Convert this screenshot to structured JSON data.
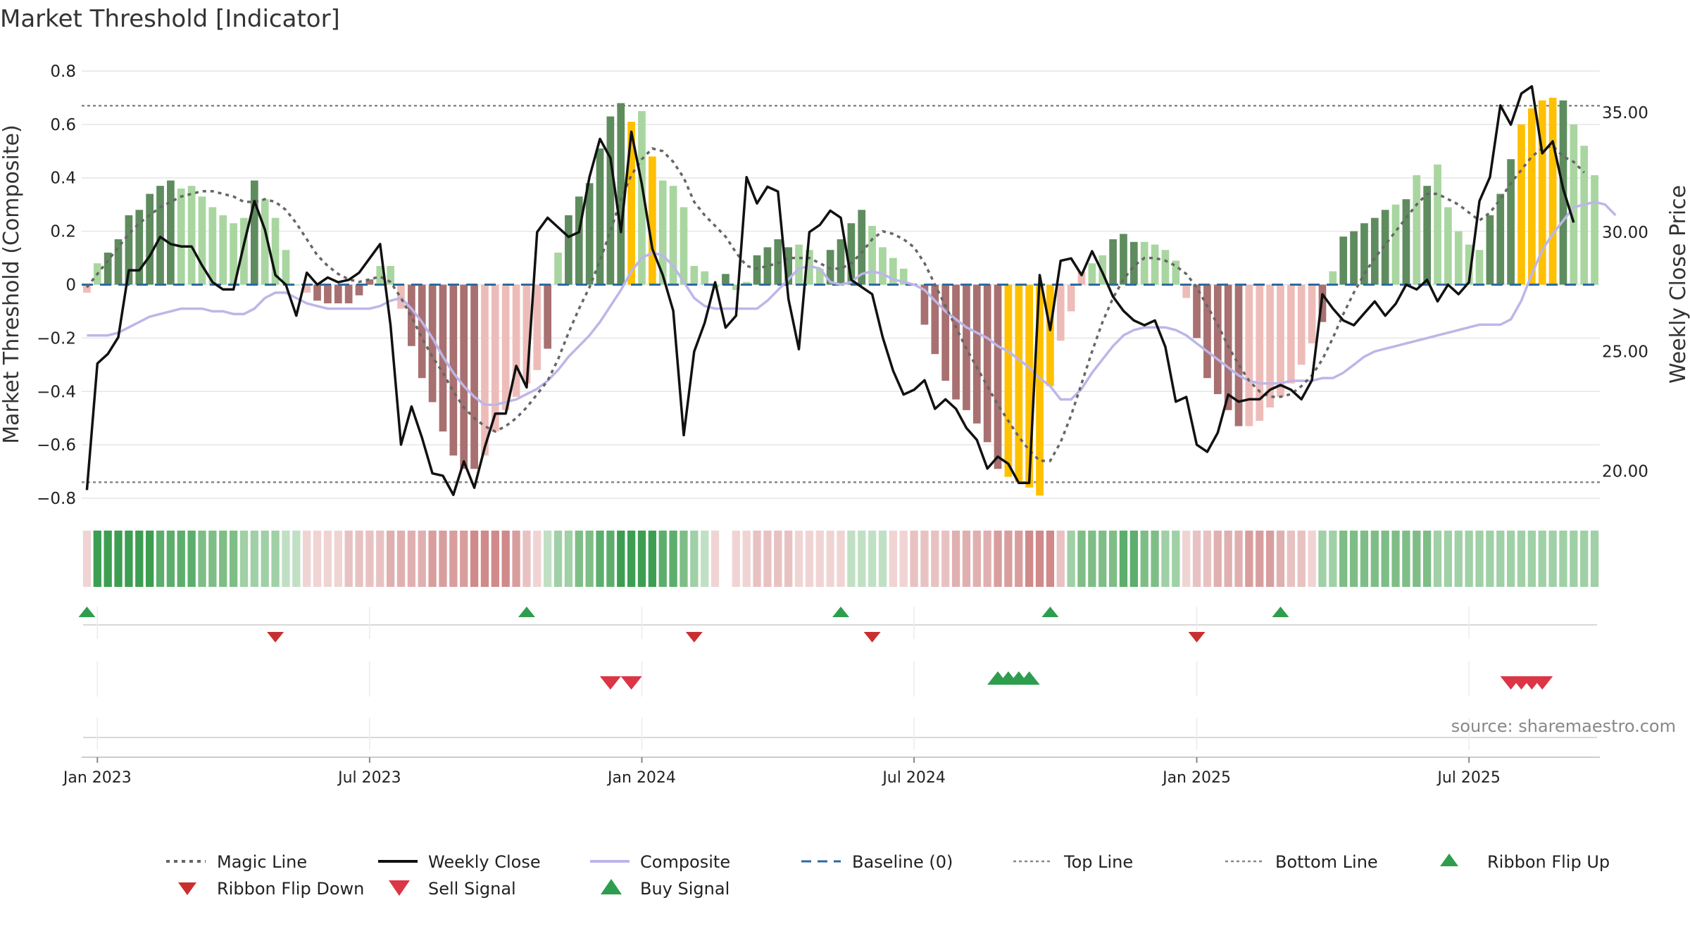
{
  "colors": {
    "pos_strong": "#5e8c5e",
    "pos_light": "#a9d6a0",
    "neg_strong": "#a87070",
    "neg_light": "#eebcb8",
    "extreme": "#ffc000",
    "magic": "#666666",
    "close": "#111111",
    "composite": "#bdb6e8",
    "baseline": "#2e6a9e",
    "threshold": "#888888",
    "buy": "#2e9e4e",
    "sell": "#dc3545",
    "ribbon_up": "#2e9e4e",
    "ribbon_down": "#c8302f",
    "grid": "#e6e6e6"
  },
  "chart_data": {
    "type": "bar",
    "title": "Market Threshold [Indicator]",
    "ylabel": "Market Threshold (Composite)",
    "y2label": "Weekly Close Price",
    "ylim": [
      -0.85,
      0.85
    ],
    "y2lim": [
      18.3,
      37.3
    ],
    "yticks": [
      "0.8",
      "0.6",
      "0.4",
      "0.2",
      "0",
      "−0.2",
      "−0.4",
      "−0.6",
      "−0.8"
    ],
    "yticks_values": [
      0.8,
      0.6,
      0.4,
      0.2,
      0,
      -0.2,
      -0.4,
      -0.6,
      -0.8
    ],
    "y2ticks": [
      "35.00",
      "30.00",
      "25.00",
      "20.00"
    ],
    "y2ticks_values": [
      35,
      30,
      25,
      20
    ],
    "top_line": 0.67,
    "bottom_line": -0.74,
    "x_start_week": -1,
    "x_ticks": [
      {
        "label": "Jan 2023",
        "week": 0
      },
      {
        "label": "Jul 2023",
        "week": 26
      },
      {
        "label": "Jan 2024",
        "week": 52
      },
      {
        "label": "Jul 2024",
        "week": 78
      },
      {
        "label": "Jan 2025",
        "week": 105
      },
      {
        "label": "Jul 2025",
        "week": 131
      }
    ],
    "composite_bars": [
      -0.03,
      0.08,
      0.12,
      0.17,
      0.26,
      0.28,
      0.34,
      0.37,
      0.39,
      0.36,
      0.37,
      0.33,
      0.29,
      0.26,
      0.23,
      0.25,
      0.39,
      0.32,
      0.25,
      0.13,
      0.0,
      -0.03,
      -0.06,
      -0.07,
      -0.07,
      -0.07,
      -0.04,
      0.02,
      0.07,
      0.07,
      -0.09,
      -0.23,
      -0.35,
      -0.44,
      -0.55,
      -0.64,
      -0.69,
      -0.69,
      -0.64,
      -0.55,
      -0.47,
      -0.42,
      -0.37,
      -0.32,
      -0.24,
      0.12,
      0.26,
      0.33,
      0.38,
      0.51,
      0.63,
      0.68,
      0.61,
      0.65,
      0.48,
      0.39,
      0.37,
      0.29,
      0.07,
      0.05,
      -0.01,
      0.04,
      -0.02,
      0.01,
      0.11,
      0.14,
      0.17,
      0.14,
      0.15,
      0.13,
      0.06,
      0.13,
      0.17,
      0.23,
      0.28,
      0.22,
      0.14,
      0.1,
      0.06,
      0.0,
      -0.15,
      -0.26,
      -0.36,
      -0.43,
      -0.47,
      -0.52,
      -0.59,
      -0.69,
      -0.72,
      -0.74,
      -0.76,
      -0.79,
      -0.38,
      -0.21,
      -0.1,
      0.05,
      0.08,
      0.11,
      0.17,
      0.19,
      0.16,
      0.16,
      0.15,
      0.13,
      0.09,
      -0.05,
      -0.2,
      -0.35,
      -0.41,
      -0.47,
      -0.53,
      -0.53,
      -0.51,
      -0.46,
      -0.42,
      -0.37,
      -0.3,
      -0.22,
      -0.14,
      0.05,
      0.18,
      0.2,
      0.23,
      0.25,
      0.28,
      0.3,
      0.32,
      0.41,
      0.37,
      0.45,
      0.29,
      0.2,
      0.15,
      0.13,
      0.26,
      0.34,
      0.47,
      0.6,
      0.66,
      0.69,
      0.7,
      0.69,
      0.6,
      0.52,
      0.41
    ],
    "composite_bar_styles": [
      "nl",
      "pl",
      "ps",
      "ps",
      "ps",
      "ps",
      "ps",
      "ps",
      "ps",
      "pl",
      "pl",
      "pl",
      "pl",
      "pl",
      "pl",
      "pl",
      "ps",
      "pl",
      "pl",
      "pl",
      "pl",
      "nl",
      "ns",
      "ns",
      "ns",
      "ns",
      "ns",
      "ns",
      "pl",
      "pl",
      "nl",
      "ns",
      "ns",
      "ns",
      "ns",
      "ns",
      "ns",
      "ns",
      "nl",
      "nl",
      "nl",
      "nl",
      "nl",
      "nl",
      "ns",
      "pl",
      "ps",
      "ps",
      "ps",
      "ps",
      "ps",
      "ps",
      "ex",
      "pl",
      "ex",
      "pl",
      "pl",
      "pl",
      "pl",
      "pl",
      "pl",
      "ps",
      "pl",
      "pl",
      "ps",
      "ps",
      "ps",
      "ps",
      "pl",
      "pl",
      "pl",
      "ps",
      "ps",
      "ps",
      "ps",
      "pl",
      "pl",
      "pl",
      "pl",
      "pl",
      "ns",
      "ns",
      "ns",
      "ns",
      "ns",
      "ns",
      "ns",
      "ns",
      "ex",
      "ex",
      "ex",
      "ex",
      "ex",
      "nl",
      "nl",
      "nl",
      "pl",
      "pl",
      "ps",
      "ps",
      "ps",
      "pl",
      "pl",
      "pl",
      "pl",
      "nl",
      "ns",
      "ns",
      "ns",
      "ns",
      "ns",
      "nl",
      "nl",
      "nl",
      "nl",
      "nl",
      "nl",
      "nl",
      "ns",
      "pl",
      "ps",
      "ps",
      "ps",
      "ps",
      "ps",
      "pl",
      "ps",
      "pl",
      "ps",
      "pl",
      "pl",
      "pl",
      "pl",
      "pl",
      "ps",
      "ps",
      "ps",
      "ex",
      "ex",
      "ex",
      "ex",
      "ps",
      "pl",
      "pl"
    ],
    "magic_line": [
      -0.01,
      0.04,
      0.09,
      0.14,
      0.19,
      0.23,
      0.26,
      0.29,
      0.31,
      0.33,
      0.34,
      0.35,
      0.35,
      0.34,
      0.33,
      0.31,
      0.31,
      0.32,
      0.31,
      0.28,
      0.23,
      0.17,
      0.11,
      0.07,
      0.04,
      0.02,
      0.01,
      0.02,
      0.03,
      0.01,
      -0.05,
      -0.12,
      -0.2,
      -0.27,
      -0.33,
      -0.4,
      -0.46,
      -0.5,
      -0.53,
      -0.55,
      -0.53,
      -0.5,
      -0.46,
      -0.41,
      -0.36,
      -0.28,
      -0.18,
      -0.09,
      -0.01,
      0.09,
      0.2,
      0.32,
      0.41,
      0.47,
      0.51,
      0.5,
      0.46,
      0.4,
      0.31,
      0.26,
      0.22,
      0.18,
      0.12,
      0.07,
      0.06,
      0.07,
      0.08,
      0.1,
      0.1,
      0.1,
      0.08,
      0.06,
      0.06,
      0.08,
      0.12,
      0.17,
      0.2,
      0.19,
      0.17,
      0.14,
      0.08,
      0.0,
      -0.08,
      -0.16,
      -0.24,
      -0.31,
      -0.38,
      -0.45,
      -0.51,
      -0.57,
      -0.62,
      -0.66,
      -0.66,
      -0.59,
      -0.49,
      -0.37,
      -0.25,
      -0.14,
      -0.05,
      0.02,
      0.07,
      0.1,
      0.1,
      0.09,
      0.07,
      0.04,
      -0.01,
      -0.08,
      -0.15,
      -0.23,
      -0.3,
      -0.36,
      -0.4,
      -0.42,
      -0.42,
      -0.41,
      -0.38,
      -0.34,
      -0.28,
      -0.2,
      -0.11,
      -0.03,
      0.04,
      0.1,
      0.15,
      0.2,
      0.25,
      0.3,
      0.34,
      0.34,
      0.32,
      0.3,
      0.27,
      0.24,
      0.27,
      0.32,
      0.38,
      0.43,
      0.48,
      0.51,
      0.52,
      0.48,
      0.46,
      0.42
    ],
    "composite_line": [
      -0.19,
      -0.19,
      -0.19,
      -0.18,
      -0.16,
      -0.14,
      -0.12,
      -0.11,
      -0.1,
      -0.09,
      -0.09,
      -0.09,
      -0.1,
      -0.1,
      -0.11,
      -0.11,
      -0.09,
      -0.05,
      -0.03,
      -0.03,
      -0.05,
      -0.07,
      -0.08,
      -0.09,
      -0.09,
      -0.09,
      -0.09,
      -0.09,
      -0.08,
      -0.06,
      -0.05,
      -0.09,
      -0.14,
      -0.2,
      -0.27,
      -0.33,
      -0.38,
      -0.42,
      -0.45,
      -0.45,
      -0.44,
      -0.43,
      -0.41,
      -0.39,
      -0.36,
      -0.32,
      -0.27,
      -0.23,
      -0.19,
      -0.14,
      -0.08,
      -0.02,
      0.05,
      0.1,
      0.12,
      0.11,
      0.07,
      0.01,
      -0.05,
      -0.08,
      -0.09,
      -0.09,
      -0.09,
      -0.09,
      -0.09,
      -0.06,
      -0.02,
      0.02,
      0.06,
      0.07,
      0.06,
      0.01,
      0.0,
      0.01,
      0.04,
      0.05,
      0.04,
      0.02,
      0.01,
      0.0,
      -0.02,
      -0.06,
      -0.1,
      -0.13,
      -0.16,
      -0.18,
      -0.2,
      -0.23,
      -0.25,
      -0.28,
      -0.31,
      -0.35,
      -0.38,
      -0.43,
      -0.43,
      -0.39,
      -0.33,
      -0.28,
      -0.23,
      -0.19,
      -0.17,
      -0.16,
      -0.16,
      -0.16,
      -0.17,
      -0.19,
      -0.22,
      -0.25,
      -0.28,
      -0.31,
      -0.34,
      -0.36,
      -0.37,
      -0.37,
      -0.37,
      -0.36,
      -0.36,
      -0.36,
      -0.35,
      -0.35,
      -0.33,
      -0.3,
      -0.27,
      -0.25,
      -0.24,
      -0.23,
      -0.22,
      -0.21,
      -0.2,
      -0.19,
      -0.18,
      -0.17,
      -0.16,
      -0.15,
      -0.15,
      -0.15,
      -0.13,
      -0.06,
      0.04,
      0.13,
      0.19,
      0.24,
      0.29,
      0.3,
      0.31,
      0.3,
      0.26
    ],
    "weekly_close": [
      19.2,
      24.5,
      24.9,
      25.6,
      28.4,
      28.4,
      29.0,
      29.8,
      29.5,
      29.4,
      29.4,
      28.6,
      27.9,
      27.6,
      27.6,
      29.5,
      31.3,
      30.1,
      28.2,
      27.8,
      26.5,
      28.3,
      27.8,
      28.1,
      27.9,
      28.0,
      28.3,
      28.9,
      29.5,
      26.1,
      21.1,
      22.7,
      21.4,
      19.9,
      19.8,
      19.0,
      20.4,
      19.3,
      21.0,
      22.4,
      22.4,
      24.4,
      23.5,
      30.0,
      30.6,
      30.2,
      29.8,
      30.0,
      32.3,
      33.9,
      33.1,
      30.0,
      34.2,
      32.0,
      29.3,
      28.2,
      26.7,
      21.5,
      25.0,
      26.2,
      27.9,
      26.0,
      26.5,
      32.3,
      31.2,
      31.9,
      31.7,
      27.2,
      25.1,
      30.0,
      30.3,
      30.9,
      30.6,
      28.0,
      27.7,
      27.4,
      25.6,
      24.2,
      23.2,
      23.4,
      23.8,
      22.6,
      23.0,
      22.6,
      21.8,
      21.3,
      20.1,
      20.6,
      20.3,
      19.5,
      19.5,
      28.2,
      25.9,
      28.8,
      28.9,
      28.2,
      29.2,
      28.3,
      27.3,
      26.7,
      26.3,
      26.1,
      26.3,
      25.2,
      22.9,
      23.1,
      21.1,
      20.8,
      21.6,
      23.2,
      22.9,
      23.0,
      23.0,
      23.4,
      23.6,
      23.4,
      23.0,
      23.8,
      27.4,
      26.8,
      26.3,
      26.1,
      26.6,
      27.1,
      26.5,
      27.0,
      27.8,
      27.6,
      28.0,
      27.1,
      27.8,
      27.4,
      27.9,
      31.3,
      32.3,
      35.3,
      34.5,
      35.8,
      36.1,
      33.3,
      33.8,
      31.8,
      30.4
    ],
    "ribbon_colors": [
      "#f0d4d4",
      "#3d9e52",
      "#3d9e52",
      "#3d9e52",
      "#3d9e52",
      "#3d9e52",
      "#3d9e52",
      "#5dae6c",
      "#5dae6c",
      "#5dae6c",
      "#5dae6c",
      "#7ebe86",
      "#7ebe86",
      "#7ebe86",
      "#7ebe86",
      "#a0d0a6",
      "#a0d0a6",
      "#a0d0a6",
      "#a0d0a6",
      "#c0e0c4",
      "#c0e0c4",
      "#f0d4d4",
      "#f0d4d4",
      "#f0d4d4",
      "#f0d4d4",
      "#e8c2c2",
      "#e8c2c2",
      "#e8c2c2",
      "#e8c2c2",
      "#e0b0b0",
      "#e0b0b0",
      "#e0b0b0",
      "#e0b0b0",
      "#d89e9e",
      "#d89e9e",
      "#d89e9e",
      "#d89e9e",
      "#d08a8a",
      "#d08a8a",
      "#d08a8a",
      "#d08a8a",
      "#d89e9e",
      "#e8c2c2",
      "#f0d4d4",
      "#c0e0c4",
      "#a0d0a6",
      "#a0d0a6",
      "#7ebe86",
      "#7ebe86",
      "#5dae6c",
      "#5dae6c",
      "#3d9e52",
      "#3d9e52",
      "#3d9e52",
      "#3d9e52",
      "#5dae6c",
      "#5dae6c",
      "#7ebe86",
      "#a0d0a6",
      "#c0e0c4",
      "#f0d4d4",
      "none",
      "#f0d4d4",
      "#f0d4d4",
      "#e8c2c2",
      "#e8c2c2",
      "#e8c2c2",
      "#e8c2c2",
      "#f0d4d4",
      "#f0d4d4",
      "#f0d4d4",
      "#f0d4d4",
      "#f0d4d4",
      "#c0e0c4",
      "#c0e0c4",
      "#c0e0c4",
      "#c0e0c4",
      "#f0d4d4",
      "#f0d4d4",
      "#e8c2c2",
      "#e8c2c2",
      "#e8c2c2",
      "#e8c2c2",
      "#e0b0b0",
      "#e0b0b0",
      "#e0b0b0",
      "#e0b0b0",
      "#d89e9e",
      "#d89e9e",
      "#d89e9e",
      "#d08a8a",
      "#d08a8a",
      "#d08a8a",
      "#e8c2c2",
      "#a0d0a6",
      "#7ebe86",
      "#7ebe86",
      "#7ebe86",
      "#7ebe86",
      "#5dae6c",
      "#5dae6c",
      "#7ebe86",
      "#7ebe86",
      "#a0d0a6",
      "#a0d0a6",
      "#f0d4d4",
      "#e8c2c2",
      "#e8c2c2",
      "#e0b0b0",
      "#e0b0b0",
      "#e0b0b0",
      "#d89e9e",
      "#d89e9e",
      "#d89e9e",
      "#e0b0b0",
      "#e8c2c2",
      "#e8c2c2",
      "#f0d4d4",
      "#a0d0a6",
      "#a0d0a6",
      "#7ebe86",
      "#7ebe86",
      "#7ebe86",
      "#7ebe86",
      "#7ebe86",
      "#7ebe86",
      "#7ebe86",
      "#7ebe86",
      "#7ebe86",
      "#a0d0a6",
      "#a0d0a6",
      "#a0d0a6",
      "#a0d0a6",
      "#a0d0a6",
      "#a0d0a6",
      "#a0d0a6",
      "#a0d0a6",
      "#a0d0a6",
      "#a0d0a6",
      "#a0d0a6",
      "#a0d0a6",
      "#a0d0a6",
      "#a0d0a6",
      "#a0d0a6",
      "#a0d0a6"
    ],
    "ribbon_flip_up_weeks": [
      -1,
      41,
      71,
      91,
      113
    ],
    "ribbon_flip_down_weeks": [
      17,
      57,
      74,
      105
    ],
    "sell_signal_weeks": [
      49,
      51,
      135,
      136,
      137,
      138
    ],
    "buy_signal_weeks": [
      86,
      87,
      88,
      89
    ]
  },
  "legend": {
    "magic_line": "Magic Line",
    "weekly_close": "Weekly Close",
    "composite": "Composite",
    "baseline": "Baseline (0)",
    "top_line": "Top Line",
    "bottom_line": "Bottom Line",
    "ribbon_flip_up": "Ribbon Flip Up",
    "ribbon_flip_down": "Ribbon Flip Down",
    "sell_signal": "Sell Signal",
    "buy_signal": "Buy Signal"
  },
  "source_text": "source: sharemaestro.com"
}
